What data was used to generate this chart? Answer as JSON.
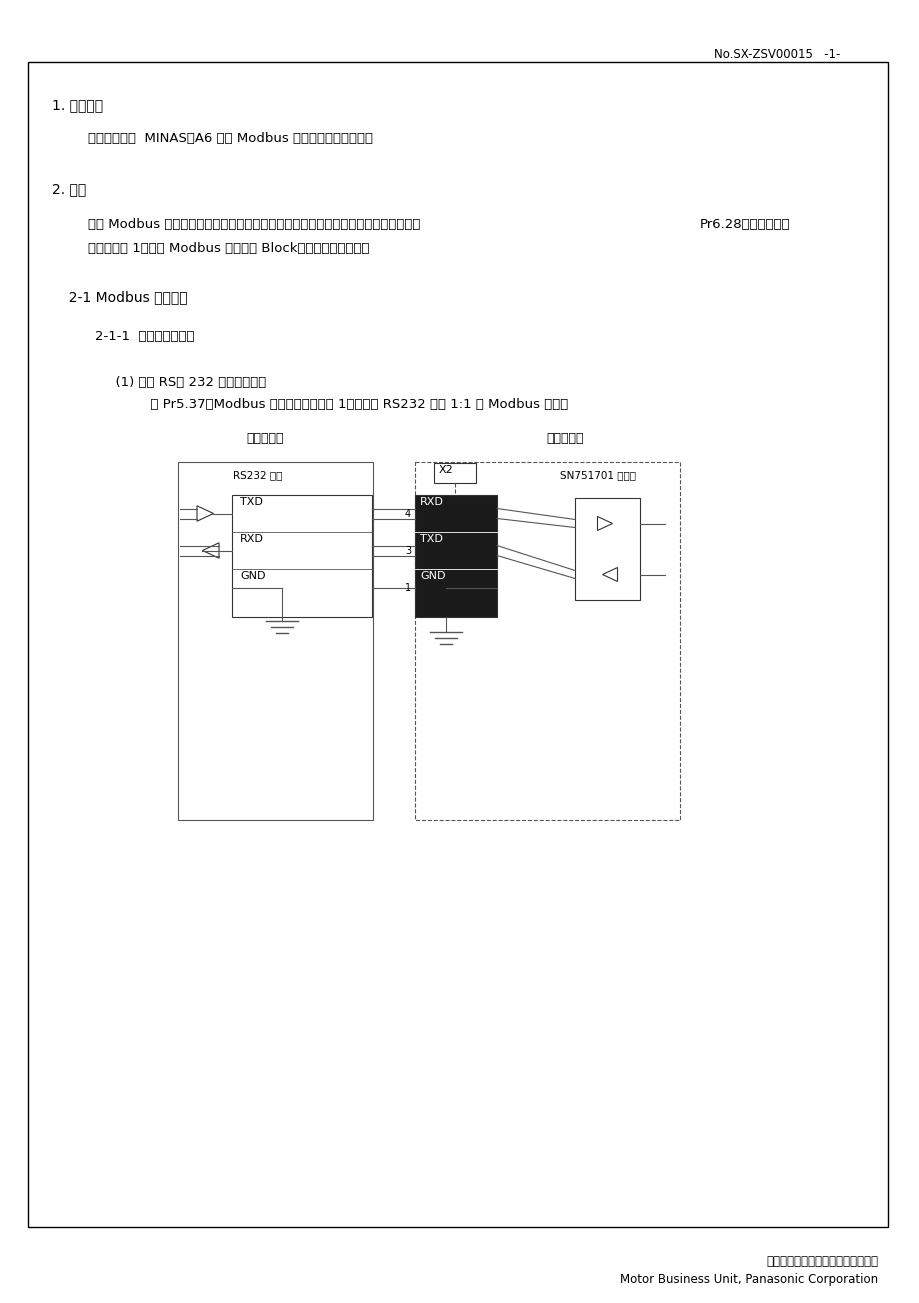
{
  "header_text": "No.SX-ZSV00015   -1-",
  "footer_line1": "松下電器中業株式会社马达经营单位",
  "footer_line2": "Motor Business Unit, Panasonic Corporation",
  "section1_title": "1. 适用范围",
  "section1_body": "此技术资料是  MINAS－A6 系列 Modbus 通信功能的相关规格。",
  "section2_title": "2. 概要",
  "section2_body1": "通过 Modbus 通信，可进行读写参数、读取伺服驱动器内部信息等操作。此外，通过将",
  "section2_body1b": "Pr6.28「特殊功能选",
  "section2_body2": "择」设置为 1，通过 Modbus 通信进行 Block（连续定位）动作。",
  "section21_title": "  2-1 Modbus 通信规格",
  "section211_title": "    2-1-1  通信线路的连接",
  "section_rs232_title": "      (1) 使用 RS－ 232 物理层的情况",
  "section_rs232_body": "          将 Pr5.37「Modbus 连接设置」设置为 1，可通过 RS232 进行 1:1 的 Modbus 通信。",
  "diag_label_left": "上位控制器",
  "diag_label_right": "伺服驱动器",
  "diag_rs232_label": "RS232 接口",
  "diag_x2_label": "X2",
  "diag_sn_label": "SN751701 同等品",
  "diag_txd": "TXD",
  "diag_rxd": "RXD",
  "diag_gnd": "GND",
  "diag_rxd2": "RXD",
  "diag_txd2": "TXD",
  "diag_gnd2": "GND",
  "diag_pin4": "4",
  "diag_pin3": "3",
  "diag_pin1": "1",
  "bg_color": "#ffffff",
  "text_color": "#000000"
}
